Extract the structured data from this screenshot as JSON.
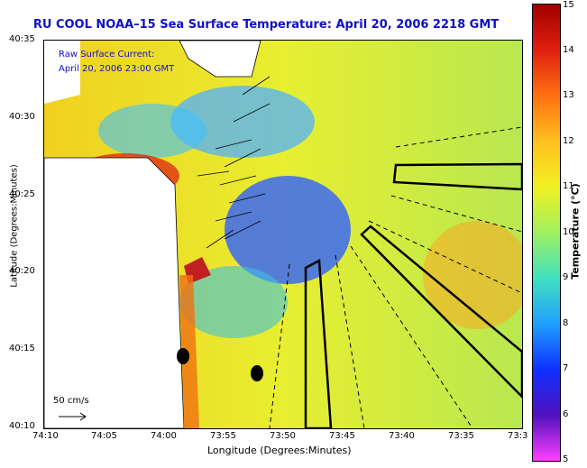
{
  "title": "RU COOL  NOAA–15  Sea Surface Temperature:  April 20, 2006 2218 GMT",
  "map": {
    "current_label_line1": "Raw Surface Current:",
    "current_label_line2": "April 20, 2006 23:00 GMT",
    "scale_label": "50 cm/s",
    "xlabel": "Longitude (Degrees:Minutes)",
    "ylabel": "Latitude (Degrees:Minutes)",
    "x_ticks": [
      "74:10",
      "74:05",
      "74:00",
      "73:55",
      "73:50",
      "73:45",
      "73:40",
      "73:35",
      "73:3"
    ],
    "y_ticks": [
      "40:35",
      "40:30",
      "40:25",
      "40:20",
      "40:15",
      "40:10"
    ]
  },
  "colorbar": {
    "label": "Temperature (°C)",
    "ticks": [
      "15",
      "14",
      "13",
      "12",
      "11",
      "10",
      "9",
      "8",
      "7",
      "6",
      "5"
    ],
    "colors": [
      "#ff40ff",
      "#5010c0",
      "#1030ff",
      "#20a0ff",
      "#40e0c0",
      "#a0f060",
      "#f0f020",
      "#ffc020",
      "#ff7010",
      "#e02010",
      "#a00000"
    ]
  }
}
